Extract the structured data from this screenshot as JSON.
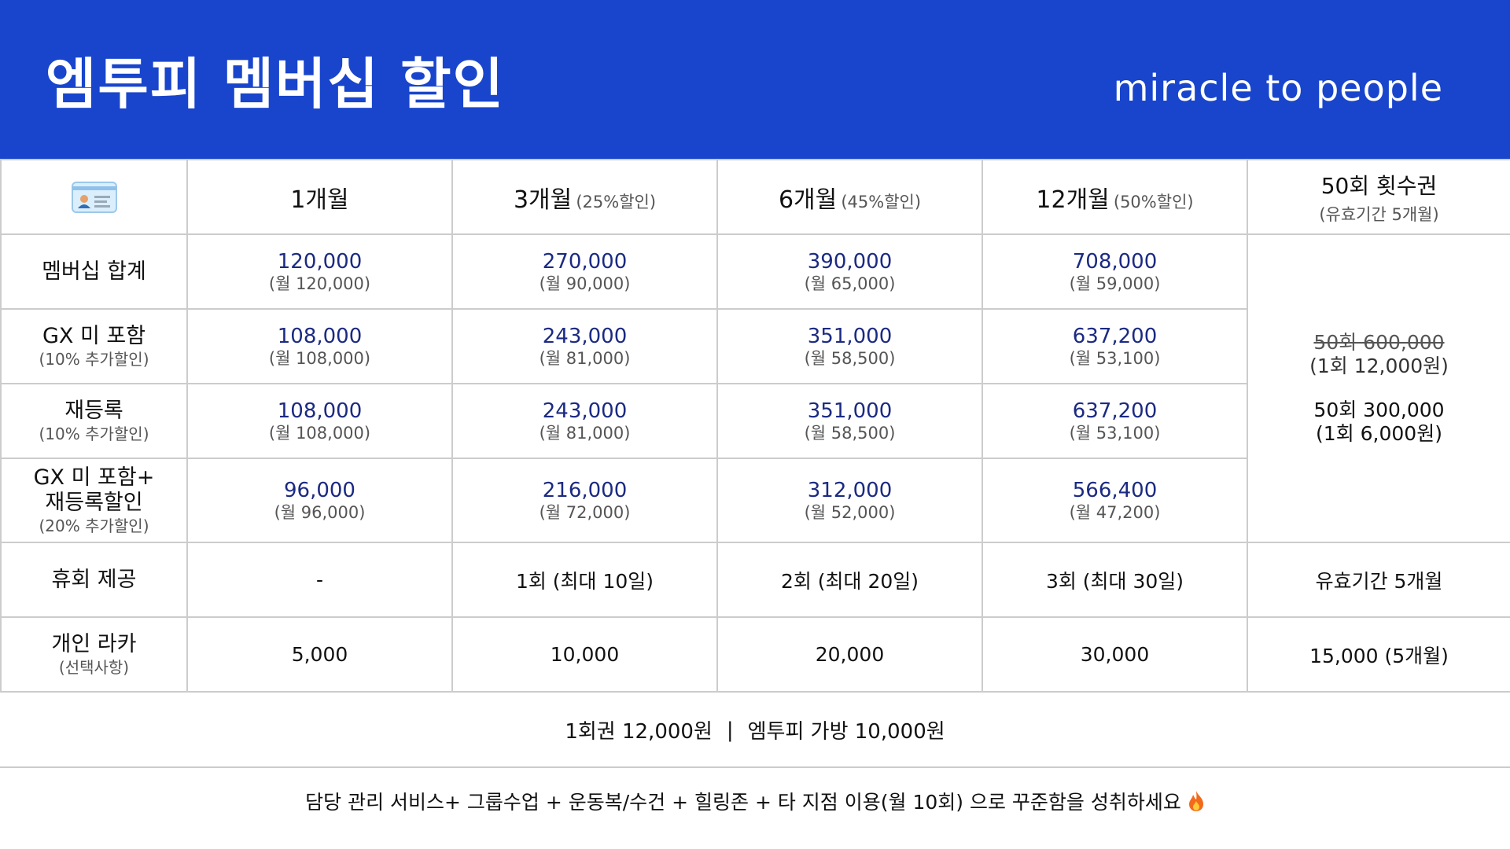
{
  "header": {
    "title": "엠투피 멤버십 할인",
    "brand": "miracle to people",
    "bg_color": "#1845cc"
  },
  "table": {
    "columns": [
      {
        "icon": "membership-card-icon"
      },
      {
        "label": "1개월",
        "note": ""
      },
      {
        "label": "3개월",
        "note": "(25%할인)"
      },
      {
        "label": "6개월",
        "note": "(45%할인)"
      },
      {
        "label": "12개월",
        "note": "(50%할인)"
      },
      {
        "label": "50회 횟수권",
        "note": "(유효기간 5개월)"
      }
    ],
    "rows": [
      {
        "label": "멤버십 합계",
        "note": "",
        "cells": [
          {
            "price": "120,000",
            "monthly": "(월 120,000)"
          },
          {
            "price": "270,000",
            "monthly": "(월 90,000)"
          },
          {
            "price": "390,000",
            "monthly": "(월 65,000)"
          },
          {
            "price": "708,000",
            "monthly": "(월 59,000)"
          }
        ]
      },
      {
        "label": "GX 미 포함",
        "note": "(10% 추가할인)",
        "cells": [
          {
            "price": "108,000",
            "monthly": "(월 108,000)"
          },
          {
            "price": "243,000",
            "monthly": "(월 81,000)"
          },
          {
            "price": "351,000",
            "monthly": "(월 58,500)"
          },
          {
            "price": "637,200",
            "monthly": "(월 53,100)"
          }
        ]
      },
      {
        "label": "재등록",
        "note": "(10% 추가할인)",
        "cells": [
          {
            "price": "108,000",
            "monthly": "(월 108,000)"
          },
          {
            "price": "243,000",
            "monthly": "(월 81,000)"
          },
          {
            "price": "351,000",
            "monthly": "(월 58,500)"
          },
          {
            "price": "637,200",
            "monthly": "(월 53,100)"
          }
        ]
      },
      {
        "label": "GX 미 포함+",
        "label2": "재등록할인",
        "note": "(20% 추가할인)",
        "cells": [
          {
            "price": "96,000",
            "monthly": "(월 96,000)"
          },
          {
            "price": "216,000",
            "monthly": "(월 72,000)"
          },
          {
            "price": "312,000",
            "monthly": "(월 52,000)"
          },
          {
            "price": "566,400",
            "monthly": "(월 47,200)"
          }
        ]
      }
    ],
    "merged_50": {
      "original": "50회 600,000",
      "original_note": "(1회 12,000원)",
      "price": "50회 300,000",
      "price_note": "(1회 6,000원)"
    },
    "pause_row": {
      "label": "휴회 제공",
      "cells": [
        "-",
        "1회 (최대 10일)",
        "2회 (최대 20일)",
        "3회 (최대 30일)",
        "유효기간 5개월"
      ]
    },
    "locker_row": {
      "label": "개인 라카",
      "note": "(선택사항)",
      "cells": [
        "5,000",
        "10,000",
        "20,000",
        "30,000",
        "15,000 (5개월)"
      ]
    }
  },
  "footer": {
    "line1_left": "1회권 12,000원",
    "line1_sep": "|",
    "line1_right": "엠투피 가방 10,000원",
    "line2": "담당 관리 서비스+ 그룹수업 + 운동복/수건 + 힐링존 + 타 지점 이용(월 10회) 으로 꾸준함을 성취하세요",
    "line2_icon": "fire-icon"
  }
}
